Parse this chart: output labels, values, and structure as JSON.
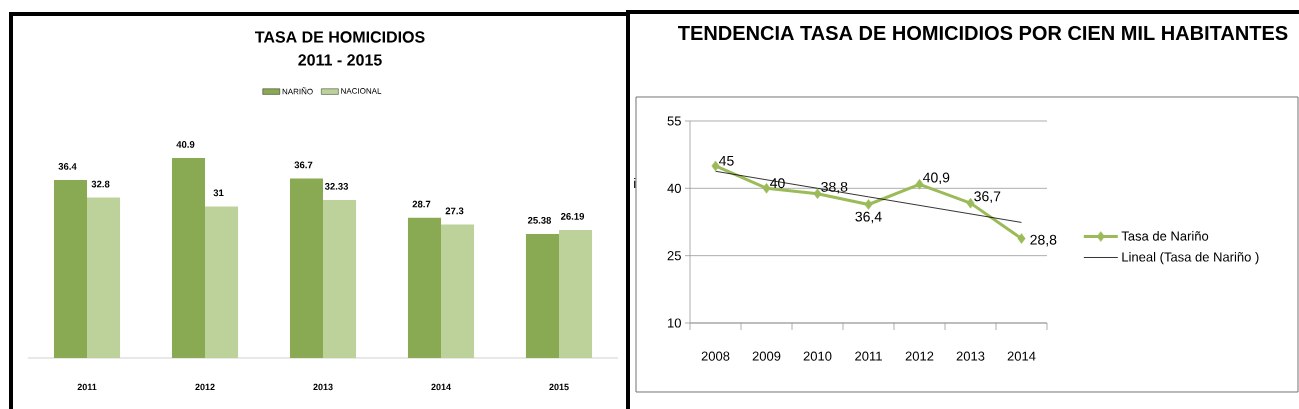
{
  "chart_data": [
    {
      "type": "bar",
      "title": "TASA DE HOMICIDIOS",
      "subtitle": "2011 - 2015",
      "categories": [
        "2011",
        "2012",
        "2013",
        "2014",
        "2015"
      ],
      "series": [
        {
          "name": "NARIÑO",
          "color": "#8aa953",
          "values": [
            36.4,
            40.9,
            36.7,
            28.7,
            25.38
          ]
        },
        {
          "name": "NACIONAL",
          "color": "#bcd29a",
          "values": [
            32.8,
            31,
            32.33,
            27.3,
            26.19
          ]
        }
      ],
      "data_labels": true,
      "legend": "top",
      "tick_labels": "x"
    },
    {
      "type": "line",
      "title": "TENDENCIA TASA DE HOMICIDIOS POR CIEN MIL HABITANTES",
      "categories": [
        "2008",
        "2009",
        "2010",
        "2011",
        "2012",
        "2013",
        "2014"
      ],
      "series": [
        {
          "name": "Tasa de Nariño",
          "color": "#9bbb59",
          "values": [
            45,
            40,
            38.8,
            36.4,
            40.9,
            36.7,
            28.8
          ],
          "value_labels": [
            "45",
            "40",
            "38,8",
            "36,4",
            "40,9",
            "36,7",
            "28,8"
          ]
        },
        {
          "name": "Lineal (Tasa de Nariño )",
          "color": "#000000",
          "values": [
            43.8,
            41.9,
            40.0,
            38.1,
            36.2,
            34.3,
            32.4
          ],
          "marker": "none"
        }
      ],
      "ylim": [
        10,
        55
      ],
      "yticks": [
        10,
        25,
        40,
        55
      ],
      "grid": "y",
      "legend": "right",
      "marker": "diamond",
      "annotations": [
        "i"
      ]
    }
  ]
}
